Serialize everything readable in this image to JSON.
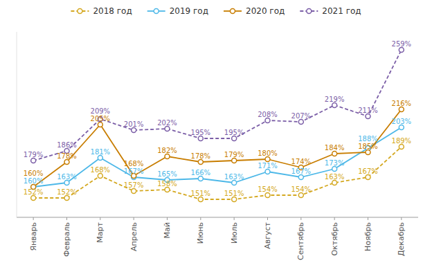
{
  "chart_data": {
    "type": "line",
    "categories": [
      "Январь",
      "Февраль",
      "Март",
      "Апрель",
      "Май",
      "Июнь",
      "Июль",
      "Август",
      "Сентябрь",
      "Октябрь",
      "Ноябрь",
      "Декабрь"
    ],
    "series": [
      {
        "name": "2018 год",
        "color": "#d4a820",
        "marker": "circle",
        "line_style": "dashed",
        "values": [
          152,
          152,
          168,
          157,
          158,
          151,
          151,
          154,
          154,
          163,
          167,
          189
        ],
        "value_labels": [
          "152%",
          "152%",
          "168%",
          "157%",
          "158%",
          "151%",
          "151%",
          "154%",
          "154%",
          "163%",
          "167%",
          "189%"
        ]
      },
      {
        "name": "2019 год",
        "color": "#4db8e8",
        "marker": "circle",
        "line_style": "solid",
        "values": [
          160,
          163,
          181,
          167,
          165,
          166,
          163,
          171,
          167,
          173,
          188,
          203
        ],
        "value_labels": [
          "160%",
          "163%",
          "181%",
          "167%",
          "165%",
          "166%",
          "163%",
          "171%",
          "167%",
          "173%",
          "188%",
          "203%"
        ]
      },
      {
        "name": "2020 год",
        "color": "#c87d00",
        "marker": "circle",
        "line_style": "solid",
        "values": [
          160,
          178,
          205,
          168,
          182,
          178,
          179,
          180,
          174,
          184,
          185,
          216
        ],
        "value_labels": [
          "160%",
          "178%",
          "205%",
          "168%",
          "182%",
          "178%",
          "179%",
          "180%",
          "174%",
          "184%",
          "185%",
          "216%"
        ]
      },
      {
        "name": "2021 год",
        "color": "#7b5ea7",
        "marker": "circle",
        "line_style": "dashed",
        "values": [
          179,
          186,
          209,
          201,
          202,
          195,
          195,
          208,
          207,
          219,
          211,
          259
        ],
        "value_labels": [
          "179%",
          "186%",
          "209%",
          "201%",
          "202%",
          "195%",
          "195%",
          "208%",
          "207%",
          "219%",
          "211%",
          "259%"
        ]
      }
    ],
    "ylim": [
      138,
      272
    ],
    "data_labels": true,
    "tick_labels": "x",
    "grid": false,
    "legend": "top"
  }
}
